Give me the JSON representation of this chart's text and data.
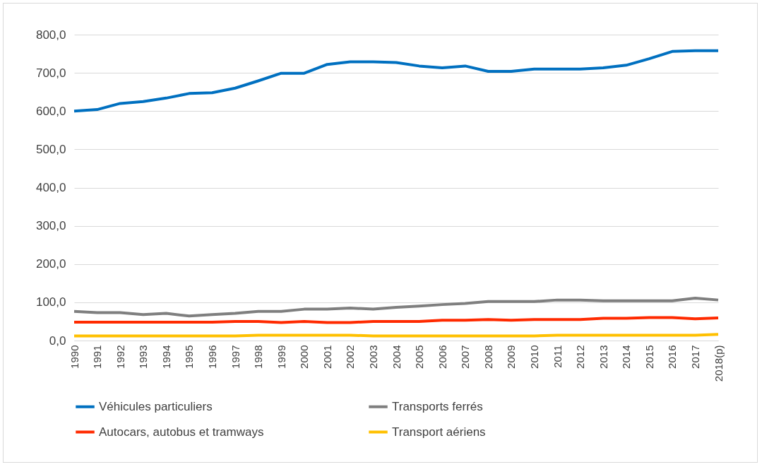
{
  "chart_data": {
    "type": "line",
    "categories": [
      "1990",
      "1991",
      "1992",
      "1993",
      "1994",
      "1995",
      "1996",
      "1997",
      "1998",
      "1999",
      "2000",
      "2001",
      "2002",
      "2003",
      "2004",
      "2005",
      "2006",
      "2007",
      "2008",
      "2009",
      "2010",
      "2011",
      "2012",
      "2013",
      "2014",
      "2015",
      "2016",
      "2017",
      "2018(p)"
    ],
    "series": [
      {
        "name": "Véhicules particuliers",
        "color": "#0070c0",
        "values": [
          600,
          604,
          620,
          625,
          634,
          646,
          648,
          660,
          679,
          699,
          699,
          722,
          729,
          729,
          727,
          718,
          713,
          718,
          704,
          704,
          710,
          710,
          710,
          713,
          720,
          737,
          756,
          758,
          758
        ]
      },
      {
        "name": "Transports ferrés",
        "color": "#7f7f7f",
        "values": [
          76,
          73,
          73,
          68,
          71,
          64,
          68,
          71,
          76,
          76,
          82,
          82,
          85,
          82,
          87,
          90,
          94,
          97,
          102,
          102,
          102,
          106,
          106,
          104,
          104,
          104,
          104,
          111,
          106
        ]
      },
      {
        "name": "Autocars, autobus et tramways",
        "color": "#ff2a00",
        "values": [
          48,
          48,
          48,
          48,
          48,
          48,
          48,
          50,
          50,
          47,
          50,
          47,
          47,
          50,
          50,
          50,
          53,
          53,
          55,
          53,
          55,
          55,
          55,
          58,
          58,
          60,
          60,
          57,
          59
        ]
      },
      {
        "name": "Transport aériens",
        "color": "#ffc000",
        "values": [
          12,
          12,
          12,
          12,
          12,
          12,
          12,
          12,
          14,
          14,
          14,
          14,
          14,
          12,
          12,
          12,
          12,
          12,
          12,
          12,
          12,
          14,
          14,
          14,
          14,
          14,
          14,
          14,
          16
        ]
      }
    ],
    "ylim": [
      0,
      800
    ],
    "yticks": [
      {
        "value": 0,
        "label": "0,0"
      },
      {
        "value": 100,
        "label": "100,0"
      },
      {
        "value": 200,
        "label": "200,0"
      },
      {
        "value": 300,
        "label": "300,0"
      },
      {
        "value": 400,
        "label": "400,0"
      },
      {
        "value": 500,
        "label": "500,0"
      },
      {
        "value": 600,
        "label": "600,0"
      },
      {
        "value": 700,
        "label": "700,0"
      },
      {
        "value": 800,
        "label": "800,0"
      }
    ],
    "grid": "y",
    "legend": "bottom",
    "line_style": "solid",
    "marker": "none"
  }
}
